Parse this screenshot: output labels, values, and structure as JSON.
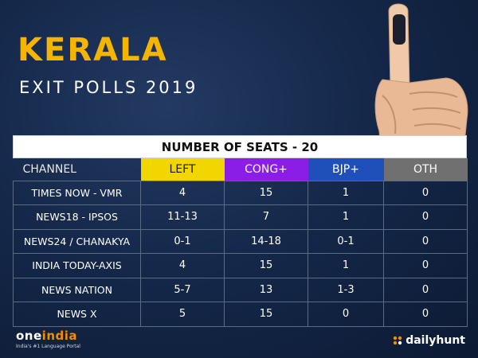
{
  "title": {
    "state": "KERALA",
    "subtitle": "EXIT POLLS 2019"
  },
  "table": {
    "banner": "NUMBER OF SEATS - 20",
    "columns": {
      "channel": "CHANNEL",
      "left": "LEFT",
      "cong": "CONG+",
      "bjp": "BJP+",
      "oth": "OTH"
    },
    "rows": [
      {
        "channel": "TIMES NOW - VMR",
        "left": "4",
        "cong": "15",
        "bjp": "1",
        "oth": "0"
      },
      {
        "channel": "NEWS18 - IPSOS",
        "left": "11-13",
        "cong": "7",
        "bjp": "1",
        "oth": "0"
      },
      {
        "channel": "NEWS24 / CHANAKYA",
        "left": "0-1",
        "cong": "14-18",
        "bjp": "0-1",
        "oth": "0"
      },
      {
        "channel": "INDIA TODAY-AXIS",
        "left": "4",
        "cong": "15",
        "bjp": "1",
        "oth": "0"
      },
      {
        "channel": "NEWS NATION",
        "left": "5-7",
        "cong": "13",
        "bjp": "1-3",
        "oth": "0"
      },
      {
        "channel": "NEWS X",
        "left": "5",
        "cong": "15",
        "bjp": "0",
        "oth": "0"
      }
    ]
  },
  "brands": {
    "oneindia_main": "one",
    "oneindia_accent": "india",
    "oneindia_tagline": "India's #1 Language Portal",
    "dailyhunt": "dailyhunt"
  },
  "colors": {
    "left": "#f2d600",
    "cong": "#8a1ee6",
    "bjp": "#1f4fb8",
    "oth": "#707070",
    "title": "#f4b400"
  }
}
